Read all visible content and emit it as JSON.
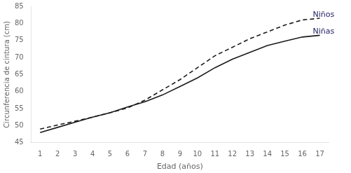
{
  "chart_data": {
    "type": "line",
    "x_label": "Edad (años)",
    "y_label": "Circunferencia de cintura (cm)",
    "x": [
      1,
      2,
      3,
      4,
      5,
      6,
      7,
      8,
      9,
      10,
      11,
      12,
      13,
      14,
      15,
      16,
      17
    ],
    "series": [
      {
        "name": "Niños",
        "color": "#1a1a1a",
        "line_style": "dashed",
        "values": [
          49.0,
          50.2,
          51.3,
          52.5,
          53.8,
          55.2,
          57.5,
          60.5,
          63.5,
          67.0,
          70.5,
          73.0,
          75.5,
          77.5,
          79.5,
          81.0,
          81.5
        ]
      },
      {
        "name": "Niñas",
        "color": "#1a1a1a",
        "line_style": "solid",
        "values": [
          48.0,
          49.5,
          51.0,
          52.5,
          53.8,
          55.5,
          57.0,
          59.0,
          61.5,
          64.0,
          67.0,
          69.5,
          71.5,
          73.5,
          74.8,
          76.0,
          76.5
        ]
      }
    ],
    "annotations": [
      {
        "text": "Niños",
        "x": 16.6,
        "y": 82.5
      },
      {
        "text": "Niñas",
        "x": 16.6,
        "y": 77.5
      }
    ],
    "xlim": [
      0.5,
      17.5
    ],
    "xticks": [
      1,
      2,
      3,
      4,
      5,
      6,
      7,
      8,
      9,
      10,
      11,
      12,
      13,
      14,
      15,
      16,
      17
    ],
    "ylim": [
      45,
      85
    ],
    "yticks": [
      45,
      50,
      55,
      60,
      65,
      70,
      75,
      80,
      85
    ],
    "grid": false
  }
}
